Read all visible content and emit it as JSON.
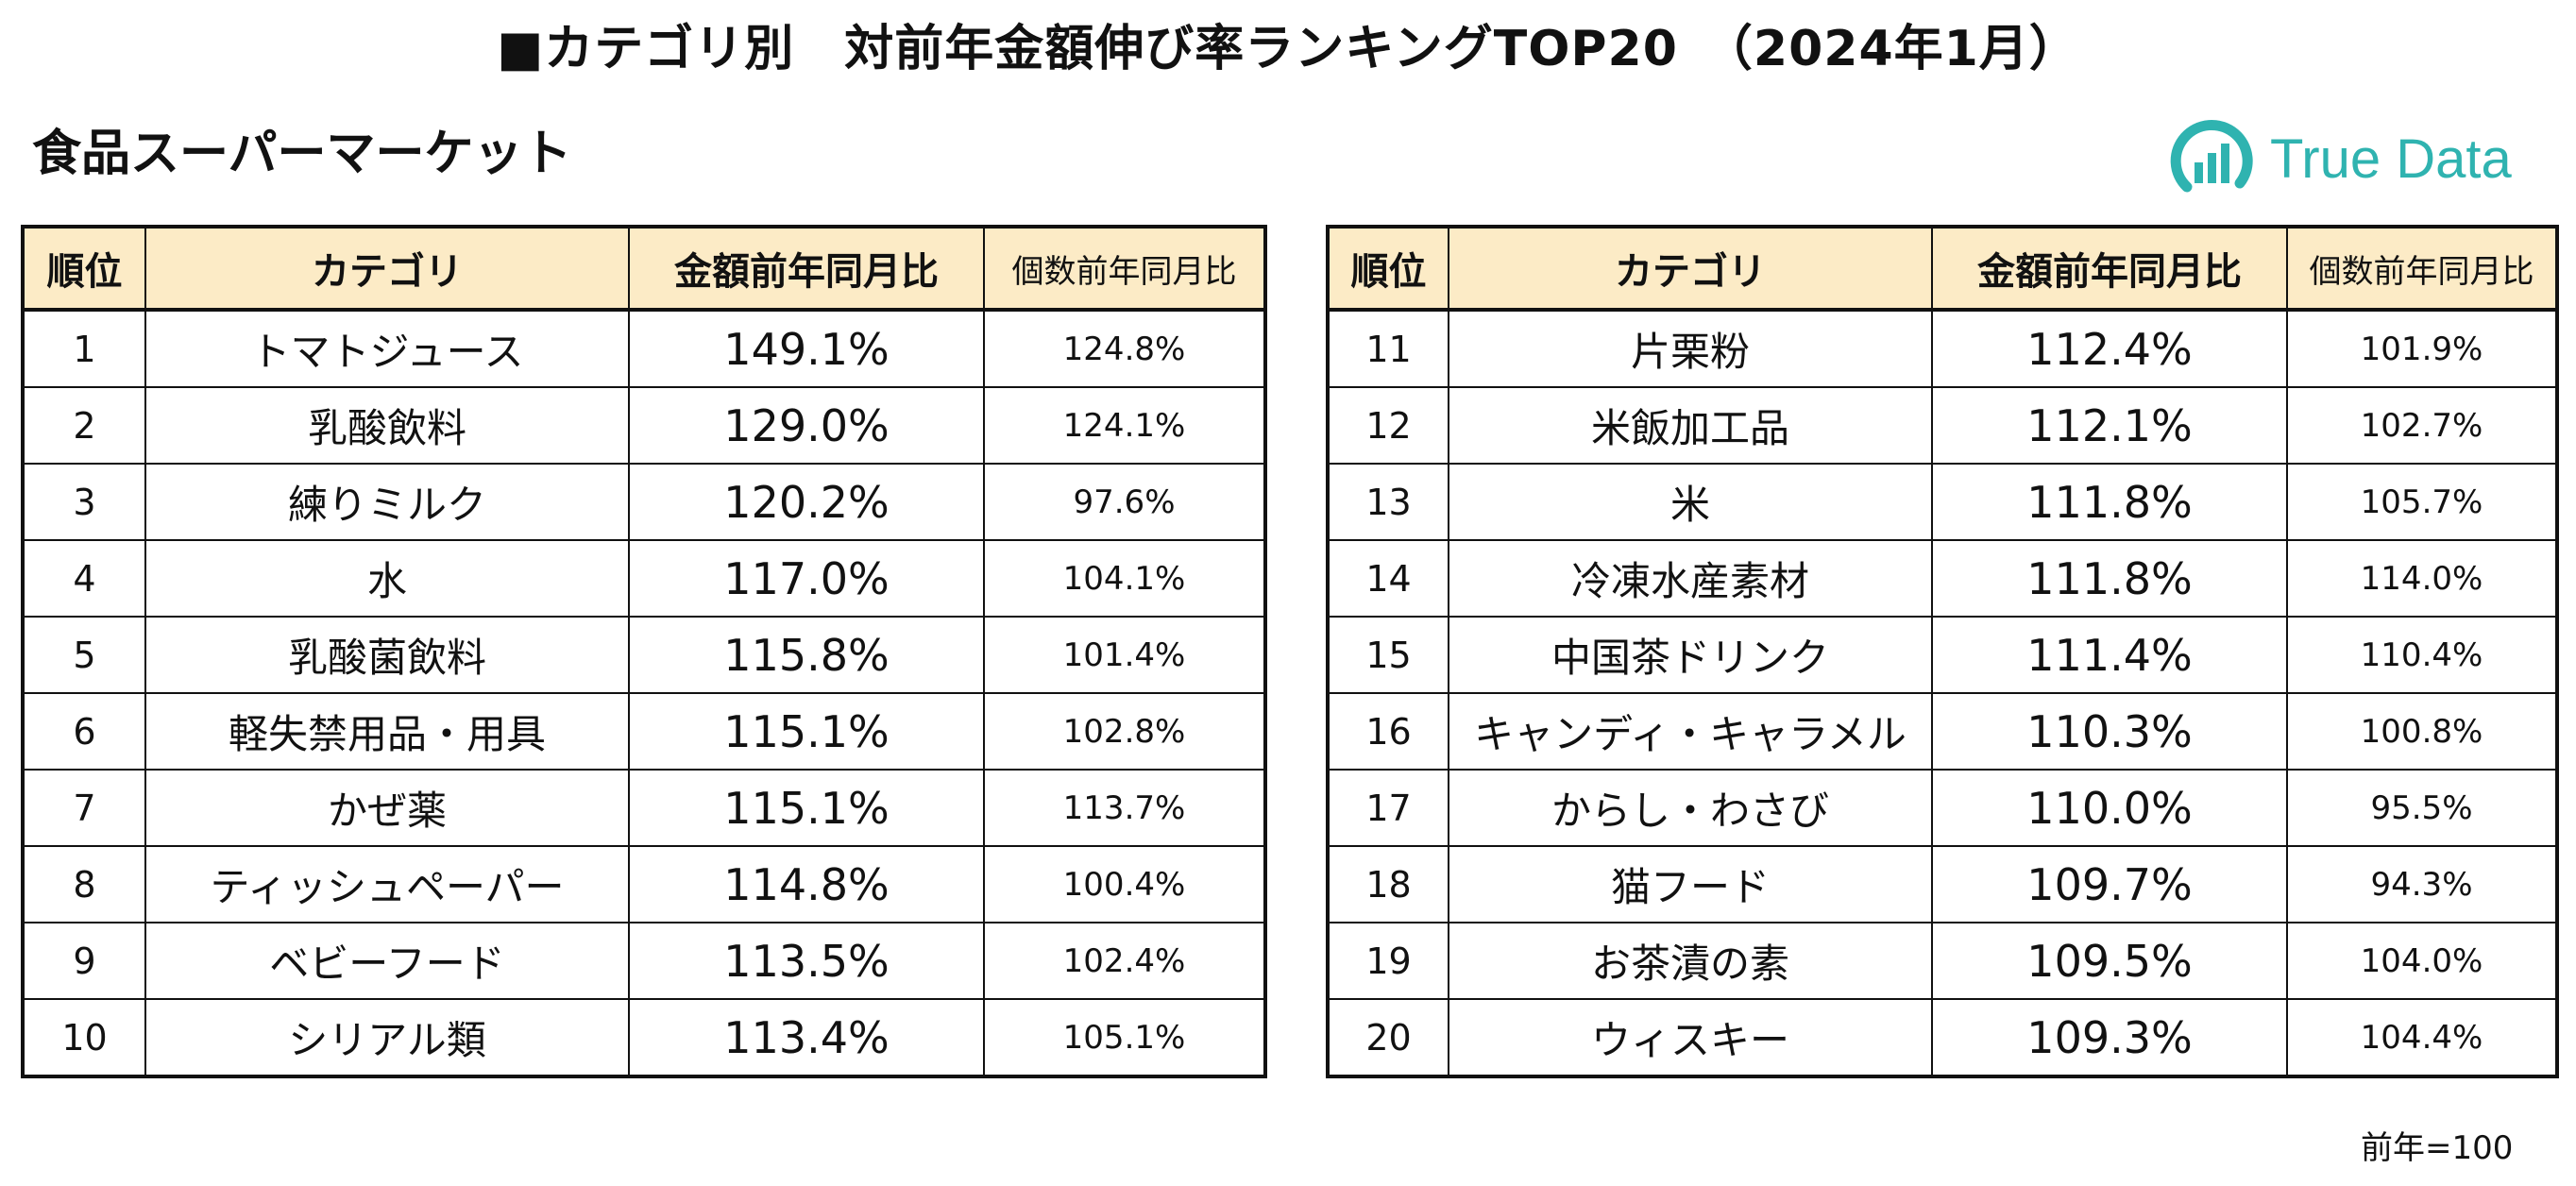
{
  "title": "■カテゴリ別　対前年金額伸び率ランキングTOP20　（2024年1月）",
  "subtitle": "食品スーパーマーケット",
  "logo": {
    "text": "True Data",
    "color": "#2fb3b0"
  },
  "colors": {
    "header_bg": "#fcebc6",
    "border": "#111111"
  },
  "headers": {
    "rank": "順位",
    "category": "カテゴリ",
    "amount": "金額前年同月比",
    "count": "個数前年同月比"
  },
  "left_rows": [
    {
      "rank": "1",
      "category": "トマトジュース",
      "amount": "149.1%",
      "count": "124.8%"
    },
    {
      "rank": "2",
      "category": "乳酸飲料",
      "amount": "129.0%",
      "count": "124.1%"
    },
    {
      "rank": "3",
      "category": "練りミルク",
      "amount": "120.2%",
      "count": "97.6%"
    },
    {
      "rank": "4",
      "category": "水",
      "amount": "117.0%",
      "count": "104.1%"
    },
    {
      "rank": "5",
      "category": "乳酸菌飲料",
      "amount": "115.8%",
      "count": "101.4%"
    },
    {
      "rank": "6",
      "category": "軽失禁用品・用具",
      "amount": "115.1%",
      "count": "102.8%"
    },
    {
      "rank": "7",
      "category": "かぜ薬",
      "amount": "115.1%",
      "count": "113.7%"
    },
    {
      "rank": "8",
      "category": "ティッシュペーパー",
      "amount": "114.8%",
      "count": "100.4%"
    },
    {
      "rank": "9",
      "category": "ベビーフード",
      "amount": "113.5%",
      "count": "102.4%"
    },
    {
      "rank": "10",
      "category": "シリアル類",
      "amount": "113.4%",
      "count": "105.1%"
    }
  ],
  "right_rows": [
    {
      "rank": "11",
      "category": "片栗粉",
      "amount": "112.4%",
      "count": "101.9%"
    },
    {
      "rank": "12",
      "category": "米飯加工品",
      "amount": "112.1%",
      "count": "102.7%"
    },
    {
      "rank": "13",
      "category": "米",
      "amount": "111.8%",
      "count": "105.7%"
    },
    {
      "rank": "14",
      "category": "冷凍水産素材",
      "amount": "111.8%",
      "count": "114.0%"
    },
    {
      "rank": "15",
      "category": "中国茶ドリンク",
      "amount": "111.4%",
      "count": "110.4%"
    },
    {
      "rank": "16",
      "category": "キャンディ・キャラメル",
      "amount": "110.3%",
      "count": "100.8%"
    },
    {
      "rank": "17",
      "category": "からし・わさび",
      "amount": "110.0%",
      "count": "95.5%"
    },
    {
      "rank": "18",
      "category": "猫フード",
      "amount": "109.7%",
      "count": "94.3%"
    },
    {
      "rank": "19",
      "category": "お茶漬の素",
      "amount": "109.5%",
      "count": "104.0%"
    },
    {
      "rank": "20",
      "category": "ウィスキー",
      "amount": "109.3%",
      "count": "104.4%"
    }
  ],
  "footnote": "前年=100"
}
